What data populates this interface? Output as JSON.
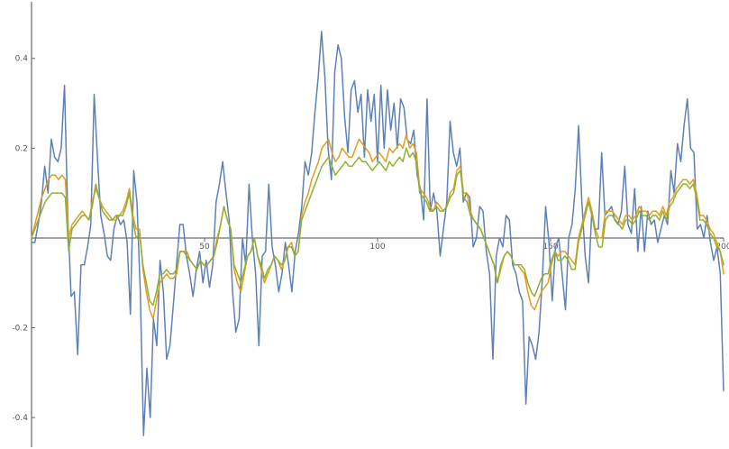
{
  "chart_data": {
    "type": "line",
    "title": "",
    "xlabel": "",
    "ylabel": "",
    "xlim": [
      0,
      200
    ],
    "ylim": [
      -0.47,
      0.53
    ],
    "grid": false,
    "legend": "none",
    "x_ticks": [
      50,
      100,
      150,
      200
    ],
    "x_tick_labels": [
      "50",
      "100",
      "150",
      "200"
    ],
    "y_ticks": [
      -0.4,
      -0.2,
      0.2,
      0.4
    ],
    "y_tick_labels": [
      "-0.4",
      "-0.2",
      "0.2",
      "0.4"
    ],
    "series": [
      {
        "color": "#5e81b5",
        "values": [
          -0.01,
          -0.01,
          0.03,
          0.08,
          0.16,
          0.1,
          0.22,
          0.18,
          0.17,
          0.2,
          0.34,
          0.05,
          -0.13,
          -0.12,
          -0.26,
          -0.06,
          -0.06,
          -0.02,
          0.03,
          0.32,
          0.18,
          0.05,
          0.01,
          -0.04,
          -0.05,
          0.02,
          0.05,
          0.03,
          0.04,
          -0.01,
          -0.17,
          0.15,
          0.08,
          -0.12,
          -0.44,
          -0.29,
          -0.4,
          -0.18,
          -0.24,
          -0.05,
          -0.12,
          -0.27,
          -0.24,
          -0.15,
          -0.06,
          0.03,
          0.03,
          -0.04,
          -0.08,
          -0.13,
          -0.07,
          -0.03,
          -0.1,
          -0.05,
          -0.11,
          -0.06,
          0.08,
          0.12,
          0.17,
          0.1,
          0.04,
          -0.12,
          -0.21,
          -0.18,
          0.0,
          -0.06,
          0.12,
          0.0,
          -0.08,
          -0.24,
          -0.04,
          -0.03,
          0.12,
          -0.02,
          -0.06,
          -0.12,
          -0.08,
          -0.01,
          -0.06,
          -0.12,
          -0.03,
          0.01,
          0.07,
          0.17,
          0.14,
          0.19,
          0.28,
          0.36,
          0.46,
          0.36,
          0.2,
          0.13,
          0.37,
          0.43,
          0.4,
          0.27,
          0.19,
          0.33,
          0.35,
          0.28,
          0.32,
          0.18,
          0.33,
          0.26,
          0.32,
          0.17,
          0.34,
          0.2,
          0.33,
          0.24,
          0.3,
          0.2,
          0.31,
          0.29,
          0.22,
          0.21,
          0.24,
          0.14,
          0.11,
          0.04,
          0.31,
          0.06,
          0.1,
          0.06,
          -0.04,
          0.02,
          0.08,
          0.26,
          0.19,
          0.16,
          0.2,
          0.08,
          0.1,
          0.09,
          -0.02,
          0.0,
          0.07,
          0.06,
          -0.03,
          -0.08,
          -0.27,
          -0.04,
          0.0,
          -0.02,
          0.05,
          0.04,
          -0.06,
          -0.08,
          -0.12,
          -0.14,
          -0.37,
          -0.22,
          -0.24,
          -0.27,
          -0.21,
          -0.09,
          0.07,
          -0.01,
          -0.14,
          -0.02,
          0.0,
          -0.08,
          -0.16,
          0.0,
          0.03,
          0.11,
          0.25,
          0.08,
          -0.04,
          -0.1,
          0.06,
          0.02,
          0.02,
          0.19,
          0.05,
          0.06,
          0.07,
          0.04,
          0.03,
          0.06,
          0.16,
          0.03,
          0.01,
          0.11,
          -0.03,
          0.07,
          -0.03,
          0.06,
          0.03,
          0.04,
          -0.01,
          0.02,
          0.05,
          0.03,
          0.15,
          0.1,
          0.21,
          0.17,
          0.25,
          0.31,
          0.2,
          0.19,
          0.02,
          0.03,
          0.0,
          0.05,
          -0.01,
          -0.05,
          -0.02,
          -0.08,
          -0.34
        ]
      },
      {
        "color": "#e19c24",
        "values": [
          0.0,
          0.03,
          0.06,
          0.09,
          0.11,
          0.13,
          0.14,
          0.14,
          0.13,
          0.14,
          0.13,
          0.0,
          0.03,
          0.04,
          0.05,
          0.06,
          0.05,
          0.04,
          0.08,
          0.11,
          0.09,
          0.07,
          0.06,
          0.05,
          0.04,
          0.04,
          0.05,
          0.06,
          0.08,
          0.11,
          0.05,
          0.02,
          0.02,
          -0.07,
          -0.12,
          -0.16,
          -0.18,
          -0.14,
          -0.1,
          -0.09,
          -0.08,
          -0.09,
          -0.09,
          -0.08,
          -0.03,
          -0.03,
          -0.03,
          -0.05,
          -0.06,
          -0.07,
          -0.05,
          -0.06,
          -0.06,
          -0.05,
          -0.04,
          0.0,
          0.03,
          0.07,
          0.04,
          0.02,
          -0.07,
          -0.1,
          -0.12,
          -0.08,
          -0.04,
          -0.03,
          0.0,
          -0.04,
          -0.07,
          -0.1,
          -0.08,
          -0.06,
          -0.04,
          -0.05,
          -0.07,
          -0.05,
          -0.02,
          -0.01,
          -0.04,
          -0.03,
          0.05,
          0.08,
          0.1,
          0.13,
          0.15,
          0.17,
          0.2,
          0.21,
          0.22,
          0.19,
          0.17,
          0.18,
          0.2,
          0.19,
          0.18,
          0.18,
          0.2,
          0.22,
          0.21,
          0.2,
          0.19,
          0.17,
          0.18,
          0.19,
          0.18,
          0.17,
          0.2,
          0.19,
          0.2,
          0.21,
          0.2,
          0.23,
          0.2,
          0.21,
          0.19,
          0.11,
          0.1,
          0.09,
          0.07,
          0.06,
          0.08,
          0.07,
          0.06,
          0.07,
          0.1,
          0.11,
          0.15,
          0.16,
          0.1,
          0.1,
          0.06,
          0.04,
          0.03,
          0.02,
          0.0,
          -0.02,
          -0.04,
          -0.06,
          -0.1,
          -0.07,
          -0.04,
          -0.03,
          -0.04,
          -0.06,
          -0.06,
          -0.07,
          -0.08,
          -0.12,
          -0.15,
          -0.16,
          -0.14,
          -0.12,
          -0.11,
          -0.1,
          -0.06,
          -0.03,
          -0.04,
          -0.03,
          -0.03,
          -0.04,
          -0.05,
          -0.06,
          0.0,
          0.03,
          0.06,
          0.09,
          0.06,
          0.02,
          0.0,
          0.0,
          0.06,
          0.06,
          0.06,
          0.05,
          0.04,
          0.03,
          0.05,
          0.05,
          0.04,
          0.05,
          0.07,
          0.06,
          0.06,
          0.05,
          0.06,
          0.06,
          0.05,
          0.07,
          0.05,
          0.08,
          0.09,
          0.11,
          0.12,
          0.13,
          0.13,
          0.12,
          0.13,
          0.1,
          0.05,
          0.05,
          0.04,
          0.02,
          0.01,
          -0.01,
          -0.03,
          -0.08
        ]
      },
      {
        "color": "#8fb032",
        "values": [
          0.0,
          0.02,
          0.04,
          0.06,
          0.08,
          0.09,
          0.1,
          0.1,
          0.1,
          0.1,
          0.09,
          -0.03,
          0.02,
          0.03,
          0.04,
          0.05,
          0.05,
          0.04,
          0.07,
          0.12,
          0.09,
          0.06,
          0.05,
          0.04,
          0.04,
          0.05,
          0.05,
          0.05,
          0.07,
          0.1,
          0.04,
          0.0,
          0.01,
          -0.06,
          -0.1,
          -0.14,
          -0.15,
          -0.12,
          -0.08,
          -0.08,
          -0.07,
          -0.08,
          -0.08,
          -0.07,
          -0.03,
          -0.03,
          -0.04,
          -0.05,
          -0.06,
          -0.07,
          -0.05,
          -0.06,
          -0.06,
          -0.05,
          -0.04,
          -0.01,
          0.03,
          0.07,
          0.04,
          0.02,
          -0.06,
          -0.08,
          -0.1,
          -0.07,
          -0.04,
          -0.03,
          0.0,
          -0.04,
          -0.06,
          -0.09,
          -0.07,
          -0.06,
          -0.04,
          -0.05,
          -0.06,
          -0.05,
          -0.02,
          -0.02,
          -0.04,
          -0.03,
          0.04,
          0.06,
          0.08,
          0.1,
          0.12,
          0.14,
          0.16,
          0.17,
          0.18,
          0.16,
          0.14,
          0.15,
          0.16,
          0.17,
          0.16,
          0.16,
          0.17,
          0.18,
          0.17,
          0.17,
          0.16,
          0.15,
          0.16,
          0.17,
          0.16,
          0.15,
          0.17,
          0.16,
          0.17,
          0.18,
          0.17,
          0.2,
          0.18,
          0.19,
          0.17,
          0.1,
          0.09,
          0.08,
          0.06,
          0.06,
          0.07,
          0.06,
          0.06,
          0.07,
          0.09,
          0.1,
          0.14,
          0.15,
          0.09,
          0.08,
          0.05,
          0.04,
          0.03,
          0.02,
          0.0,
          -0.02,
          -0.04,
          -0.06,
          -0.1,
          -0.06,
          -0.04,
          -0.03,
          -0.04,
          -0.06,
          -0.06,
          -0.06,
          -0.07,
          -0.1,
          -0.12,
          -0.13,
          -0.11,
          -0.09,
          -0.08,
          -0.08,
          -0.05,
          -0.03,
          -0.05,
          -0.05,
          -0.04,
          -0.05,
          -0.07,
          -0.07,
          -0.01,
          0.02,
          0.05,
          0.08,
          0.05,
          0.01,
          -0.02,
          -0.02,
          0.04,
          0.05,
          0.05,
          0.04,
          0.03,
          0.02,
          0.04,
          0.04,
          0.03,
          0.04,
          0.06,
          0.05,
          0.05,
          0.04,
          0.05,
          0.05,
          0.04,
          0.06,
          0.04,
          0.07,
          0.08,
          0.1,
          0.11,
          0.12,
          0.12,
          0.11,
          0.12,
          0.09,
          0.04,
          0.04,
          0.03,
          0.01,
          0.0,
          -0.02,
          -0.03,
          -0.06
        ]
      }
    ]
  }
}
